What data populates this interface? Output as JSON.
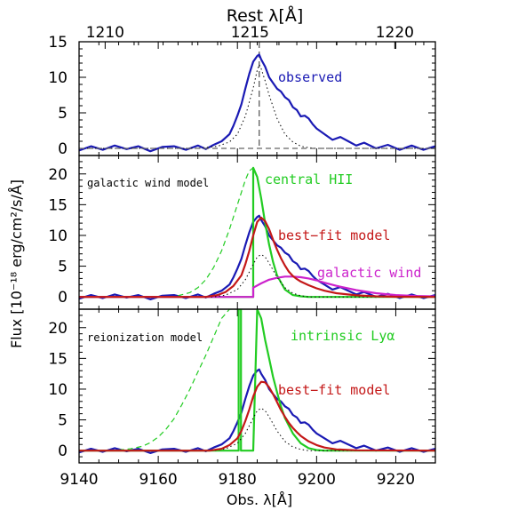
{
  "chart_data": {
    "type": "line",
    "xlabel": "Obs. λ[Å]",
    "x_top_label": "Rest λ[Å]",
    "ylabel": "Flux [10⁻¹⁸ erg/cm²/s/Å]",
    "xlim": [
      9140,
      9230
    ],
    "xticks": [
      "9140",
      "9160",
      "9180",
      "9200",
      "9220"
    ],
    "rest_lim": [
      1209.1,
      1221.4
    ],
    "rest_ticks": [
      "1210",
      "1215",
      "1220"
    ],
    "panels": [
      {
        "id": "observed",
        "ylim": [
          -1,
          15
        ],
        "yticks": [
          "0",
          "5",
          "10",
          "15"
        ],
        "labels": [
          {
            "text": "observed",
            "color": "#1a1ab4"
          }
        ],
        "series": [
          {
            "name": "observed",
            "color": "#1a1ab4",
            "style": "solid",
            "x": [
              9140,
              9143,
              9146,
              9149,
              9152,
              9155,
              9158,
              9161,
              9164,
              9167,
              9170,
              9172,
              9174,
              9176,
              9178,
              9179,
              9180,
              9181,
              9182,
              9183,
              9184,
              9185,
              9185.5,
              9186,
              9187,
              9188,
              9189,
              9190,
              9191,
              9192,
              9193,
              9194,
              9195,
              9196,
              9197,
              9198,
              9199,
              9200,
              9202,
              9204,
              9206,
              9208,
              9210,
              9212,
              9215,
              9218,
              9221,
              9224,
              9227,
              9230
            ],
            "y": [
              -0.3,
              0.3,
              -0.2,
              0.4,
              -0.1,
              0.3,
              -0.4,
              0.2,
              0.3,
              -0.2,
              0.4,
              -0.1,
              0.5,
              1.0,
              2.0,
              3.2,
              4.6,
              6.2,
              8.4,
              10.5,
              12.2,
              13.0,
              13.2,
              12.5,
              11.5,
              10.0,
              9.2,
              8.4,
              8.0,
              7.2,
              6.8,
              5.8,
              5.4,
              4.5,
              4.6,
              4.2,
              3.4,
              2.8,
              2.0,
              1.2,
              1.6,
              1.0,
              0.4,
              0.8,
              0.0,
              0.5,
              -0.2,
              0.4,
              -0.2,
              0.3
            ]
          },
          {
            "name": "model",
            "color": "#000000",
            "style": "dotted",
            "x": [
              9140,
              9170,
              9175,
              9178,
              9180,
              9182,
              9184,
              9185,
              9185.5,
              9186,
              9187,
              9188,
              9190,
              9192,
              9194,
              9196,
              9198,
              9200,
              9230
            ],
            "y": [
              0,
              0,
              0.3,
              0.9,
              2.0,
              4.5,
              8.5,
              11.0,
              11.8,
              11.2,
              9.5,
              7.5,
              4.2,
              2.0,
              0.9,
              0.3,
              0.1,
              0,
              0
            ]
          },
          {
            "name": "continuum",
            "color": "#666666",
            "style": "dashed",
            "x": [
              9140,
              9230
            ],
            "y": [
              0,
              0
            ]
          }
        ],
        "vline": {
          "x": 9185.5,
          "color": "#666666"
        }
      },
      {
        "id": "galactic-wind",
        "ylim": [
          -2,
          23
        ],
        "yticks": [
          "0",
          "5",
          "10",
          "15",
          "20"
        ],
        "labels": [
          {
            "text": "galactic wind model",
            "color": "#000000"
          },
          {
            "text": "central HII",
            "color": "#22cc22"
          },
          {
            "text": "best−fit model",
            "color": "#c41818"
          },
          {
            "text": "galactic wind",
            "color": "#cc22cc"
          }
        ],
        "series": [
          {
            "name": "observed",
            "color": "#1a1ab4",
            "style": "solid",
            "x": [
              9140,
              9143,
              9146,
              9149,
              9152,
              9155,
              9158,
              9161,
              9164,
              9167,
              9170,
              9172,
              9174,
              9176,
              9178,
              9179,
              9180,
              9181,
              9182,
              9183,
              9184,
              9185,
              9185.5,
              9186,
              9187,
              9188,
              9189,
              9190,
              9191,
              9192,
              9193,
              9194,
              9195,
              9196,
              9197,
              9198,
              9199,
              9200,
              9202,
              9204,
              9206,
              9208,
              9210,
              9212,
              9215,
              9218,
              9221,
              9224,
              9227,
              9230
            ],
            "y": [
              -0.3,
              0.3,
              -0.2,
              0.4,
              -0.1,
              0.3,
              -0.4,
              0.2,
              0.3,
              -0.2,
              0.4,
              -0.1,
              0.5,
              1.0,
              2.0,
              3.2,
              4.6,
              6.2,
              8.4,
              10.5,
              12.2,
              13.0,
              13.2,
              12.5,
              11.5,
              10.0,
              9.2,
              8.4,
              8.0,
              7.2,
              6.8,
              5.8,
              5.4,
              4.5,
              4.6,
              4.2,
              3.4,
              2.8,
              2.0,
              1.2,
              1.6,
              1.0,
              0.4,
              0.8,
              0.0,
              0.5,
              -0.2,
              0.4,
              -0.2,
              0.3
            ]
          },
          {
            "name": "central HII intrinsic",
            "color": "#22cc22",
            "style": "dashed",
            "x": [
              9165,
              9168,
              9170,
              9172,
              9174,
              9176,
              9178,
              9180,
              9182,
              9183,
              9184
            ],
            "y": [
              0.2,
              0.7,
              1.5,
              2.8,
              4.8,
              7.5,
              11.0,
              15.0,
              19.0,
              20.5,
              21.0
            ]
          },
          {
            "name": "central HII",
            "color": "#22cc22",
            "style": "solid",
            "x": [
              9140,
              9184,
              9184,
              9185,
              9186,
              9187,
              9188,
              9189,
              9190,
              9192,
              9194,
              9196,
              9198,
              9200,
              9230
            ],
            "y": [
              0,
              0,
              21.0,
              19.5,
              16.0,
              12.0,
              8.5,
              5.7,
              3.5,
              1.2,
              0.3,
              0.1,
              0,
              0,
              0
            ]
          },
          {
            "name": "galactic wind",
            "color": "#cc22cc",
            "style": "solid",
            "x": [
              9140,
              9184,
              9184,
              9186,
              9188,
              9190,
              9192,
              9194,
              9196,
              9198,
              9200,
              9202,
              9205,
              9210,
              9215,
              9220,
              9225,
              9230
            ],
            "y": [
              0,
              0,
              1.5,
              2.2,
              2.8,
              3.1,
              3.3,
              3.3,
              3.2,
              3.0,
              2.7,
              2.3,
              1.8,
              1.1,
              0.6,
              0.3,
              0.15,
              0.08
            ]
          },
          {
            "name": "model",
            "color": "#000000",
            "style": "dotted",
            "x": [
              9140,
              9174,
              9177,
              9180,
              9182,
              9184,
              9185,
              9186,
              9187,
              9188,
              9190,
              9192,
              9194,
              9196,
              9198,
              9230
            ],
            "y": [
              0,
              0,
              0.3,
              1.2,
              2.8,
              5.3,
              6.5,
              6.9,
              6.5,
              5.5,
              3.2,
              1.5,
              0.6,
              0.2,
              0,
              0
            ]
          },
          {
            "name": "best-fit model",
            "color": "#c41818",
            "style": "solid",
            "x": [
              9140,
              9172,
              9175,
              9177,
              9179,
              9181,
              9182,
              9183,
              9184,
              9185,
              9186,
              9187,
              9188,
              9189,
              9190,
              9191,
              9192,
              9193,
              9194,
              9195,
              9196,
              9198,
              9200,
              9202,
              9205,
              9210,
              9215,
              9220,
              9230
            ],
            "y": [
              0,
              0,
              0.3,
              0.8,
              1.8,
              3.5,
              5.3,
              7.5,
              10.0,
              12.2,
              12.9,
              12.3,
              11.0,
              9.3,
              7.7,
              6.3,
              5.1,
              4.1,
              3.4,
              2.9,
              2.5,
              1.9,
              1.4,
              1.0,
              0.6,
              0.25,
              0.1,
              0.03,
              0
            ]
          }
        ]
      },
      {
        "id": "reionization",
        "ylim": [
          -2,
          23
        ],
        "yticks": [
          "0",
          "5",
          "10",
          "15",
          "20"
        ],
        "labels": [
          {
            "text": "reionization model",
            "color": "#000000"
          },
          {
            "text": "intrinsic Lyα",
            "color": "#22cc22"
          },
          {
            "text": "best−fit model",
            "color": "#c41818"
          }
        ],
        "series": [
          {
            "name": "observed",
            "color": "#1a1ab4",
            "style": "solid",
            "x": [
              9140,
              9143,
              9146,
              9149,
              9152,
              9155,
              9158,
              9161,
              9164,
              9167,
              9170,
              9172,
              9174,
              9176,
              9178,
              9179,
              9180,
              9181,
              9182,
              9183,
              9184,
              9185,
              9185.5,
              9186,
              9187,
              9188,
              9189,
              9190,
              9191,
              9192,
              9193,
              9194,
              9195,
              9196,
              9197,
              9198,
              9199,
              9200,
              9202,
              9204,
              9206,
              9208,
              9210,
              9212,
              9215,
              9218,
              9221,
              9224,
              9227,
              9230
            ],
            "y": [
              -0.3,
              0.3,
              -0.2,
              0.4,
              -0.1,
              0.3,
              -0.4,
              0.2,
              0.3,
              -0.2,
              0.4,
              -0.1,
              0.5,
              1.0,
              2.0,
              3.2,
              4.6,
              6.2,
              8.4,
              10.5,
              12.2,
              13.0,
              13.2,
              12.5,
              11.5,
              10.0,
              9.2,
              8.4,
              8.0,
              7.2,
              6.8,
              5.8,
              5.4,
              4.5,
              4.6,
              4.2,
              3.4,
              2.8,
              2.0,
              1.2,
              1.6,
              1.0,
              0.4,
              0.8,
              0.0,
              0.5,
              -0.2,
              0.4,
              -0.2,
              0.3
            ]
          },
          {
            "name": "intrinsic Lyα dashed",
            "color": "#22cc22",
            "style": "dashed",
            "x": [
              9150,
              9153,
              9156,
              9158,
              9160,
              9162,
              9164,
              9166,
              9168,
              9170,
              9172,
              9174,
              9176,
              9178,
              9180
            ],
            "y": [
              0.1,
              0.3,
              0.7,
              1.3,
              2.2,
              3.5,
              5.2,
              7.5,
              10.0,
              12.8,
              15.5,
              18.5,
              21.5,
              23.0,
              23.0
            ]
          },
          {
            "name": "intrinsic Lyα",
            "color": "#22cc22",
            "style": "solid",
            "x": [
              9140,
              9180.3,
              9180.3,
              9180.9,
              9180.9,
              9184,
              9185,
              9186,
              9187,
              9188,
              9189,
              9190,
              9191,
              9192,
              9194,
              9196,
              9198,
              9200,
              9202,
              9230
            ],
            "y": [
              0,
              0,
              23.0,
              23.0,
              0,
              0,
              23.0,
              21.5,
              18.0,
              15.0,
              12.0,
              9.5,
              7.2,
              5.3,
              2.8,
              1.2,
              0.4,
              0.1,
              0,
              0
            ]
          },
          {
            "name": "model",
            "color": "#000000",
            "style": "dotted",
            "x": [
              9140,
              9174,
              9177,
              9180,
              9182,
              9184,
              9185,
              9186,
              9187,
              9188,
              9190,
              9192,
              9194,
              9196,
              9198,
              9230
            ],
            "y": [
              0,
              0,
              0.3,
              1.2,
              2.8,
              5.3,
              6.5,
              6.9,
              6.5,
              5.5,
              3.2,
              1.5,
              0.6,
              0.2,
              0,
              0
            ]
          },
          {
            "name": "best-fit model",
            "color": "#c41818",
            "style": "solid",
            "x": [
              9140,
              9173,
              9176,
              9178,
              9180,
              9181,
              9182,
              9183,
              9184,
              9185,
              9186,
              9187,
              9188,
              9189,
              9190,
              9191,
              9192,
              9193,
              9194,
              9195,
              9196,
              9198,
              9200,
              9202,
              9205,
              9210,
              9230
            ],
            "y": [
              0,
              0,
              0.3,
              0.9,
              2.0,
              3.2,
              4.8,
              6.7,
              8.8,
              10.4,
              11.2,
              11.1,
              10.3,
              9.2,
              7.9,
              6.6,
              5.5,
              4.5,
              3.7,
              3.0,
              2.4,
              1.5,
              0.9,
              0.5,
              0.2,
              0.05,
              0
            ]
          }
        ]
      }
    ]
  }
}
